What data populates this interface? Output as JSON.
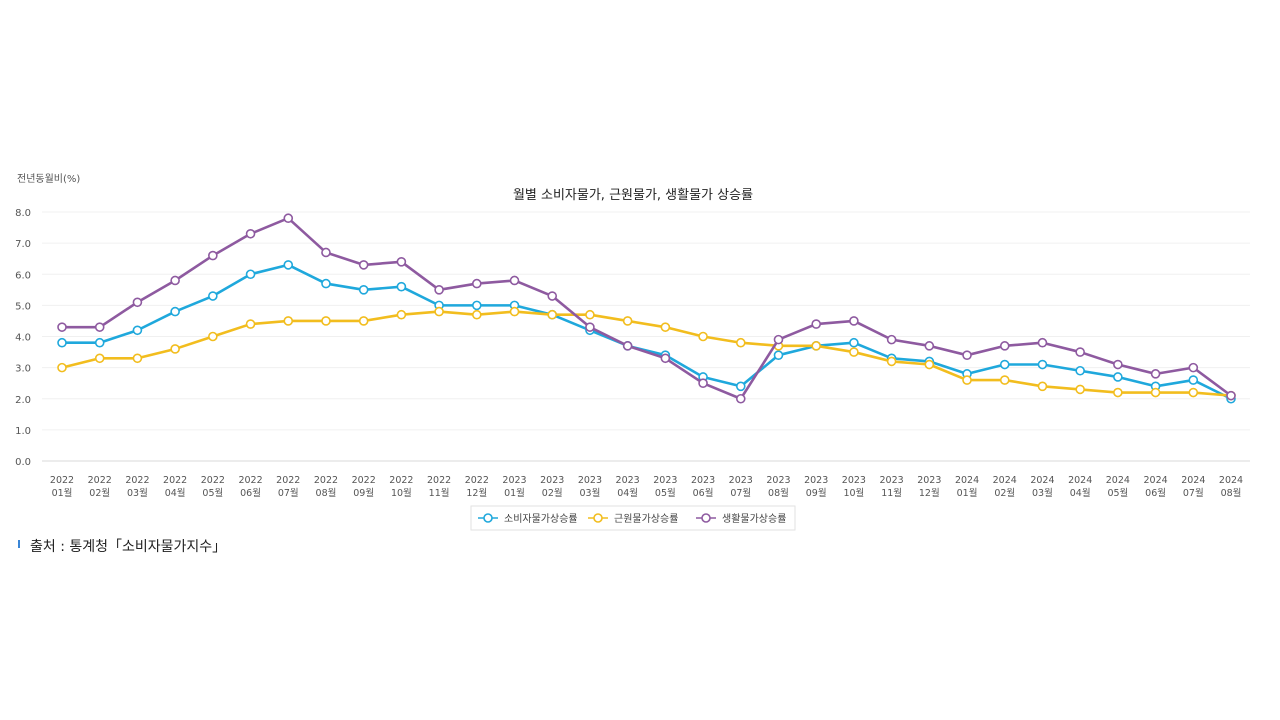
{
  "y_unit": "전년동월비(%)",
  "source": "출처 : 통계청「소비자물가지수」",
  "chart_data": {
    "type": "line",
    "title": "월별 소비자물가, 근원물가, 생활물가 상승률",
    "ylabel": "전년동월비(%)",
    "xlabel": "",
    "ylim": [
      0,
      8
    ],
    "yticks": [
      "0.0",
      "1.0",
      "2.0",
      "3.0",
      "4.0",
      "5.0",
      "6.0",
      "7.0",
      "8.0"
    ],
    "grid": true,
    "legend_position": "bottom",
    "categories": [
      [
        "2022",
        "01월"
      ],
      [
        "2022",
        "02월"
      ],
      [
        "2022",
        "03월"
      ],
      [
        "2022",
        "04월"
      ],
      [
        "2022",
        "05월"
      ],
      [
        "2022",
        "06월"
      ],
      [
        "2022",
        "07월"
      ],
      [
        "2022",
        "08월"
      ],
      [
        "2022",
        "09월"
      ],
      [
        "2022",
        "10월"
      ],
      [
        "2022",
        "11월"
      ],
      [
        "2022",
        "12월"
      ],
      [
        "2023",
        "01월"
      ],
      [
        "2023",
        "02월"
      ],
      [
        "2023",
        "03월"
      ],
      [
        "2023",
        "04월"
      ],
      [
        "2023",
        "05월"
      ],
      [
        "2023",
        "06월"
      ],
      [
        "2023",
        "07월"
      ],
      [
        "2023",
        "08월"
      ],
      [
        "2023",
        "09월"
      ],
      [
        "2023",
        "10월"
      ],
      [
        "2023",
        "11월"
      ],
      [
        "2023",
        "12월"
      ],
      [
        "2024",
        "01월"
      ],
      [
        "2024",
        "02월"
      ],
      [
        "2024",
        "03월"
      ],
      [
        "2024",
        "04월"
      ],
      [
        "2024",
        "05월"
      ],
      [
        "2024",
        "06월"
      ],
      [
        "2024",
        "07월"
      ],
      [
        "2024",
        "08월"
      ]
    ],
    "series": [
      {
        "name": "소비자물가상승률",
        "color": "#1fa8dc",
        "values": [
          3.8,
          3.8,
          4.2,
          4.8,
          5.3,
          6.0,
          6.3,
          5.7,
          5.5,
          5.6,
          5.0,
          5.0,
          5.0,
          4.7,
          4.2,
          3.7,
          3.4,
          2.7,
          2.4,
          3.4,
          3.7,
          3.8,
          3.3,
          3.2,
          2.8,
          3.1,
          3.1,
          2.9,
          2.7,
          2.4,
          2.6,
          2.0
        ]
      },
      {
        "name": "근원물가상승률",
        "color": "#f2bd1e",
        "values": [
          3.0,
          3.3,
          3.3,
          3.6,
          4.0,
          4.4,
          4.5,
          4.5,
          4.5,
          4.7,
          4.8,
          4.7,
          4.8,
          4.7,
          4.7,
          4.5,
          4.3,
          4.0,
          3.8,
          3.7,
          3.7,
          3.5,
          3.2,
          3.1,
          2.6,
          2.6,
          2.4,
          2.3,
          2.2,
          2.2,
          2.2,
          2.1
        ]
      },
      {
        "name": "생활물가상승률",
        "color": "#8e5aa0",
        "values": [
          4.3,
          4.3,
          5.1,
          5.8,
          6.6,
          7.3,
          7.8,
          6.7,
          6.3,
          6.4,
          5.5,
          5.7,
          5.8,
          5.3,
          4.3,
          3.7,
          3.3,
          2.5,
          2.0,
          3.9,
          4.4,
          4.5,
          3.9,
          3.7,
          3.4,
          3.7,
          3.8,
          3.5,
          3.1,
          2.8,
          3.0,
          2.1
        ]
      }
    ]
  }
}
